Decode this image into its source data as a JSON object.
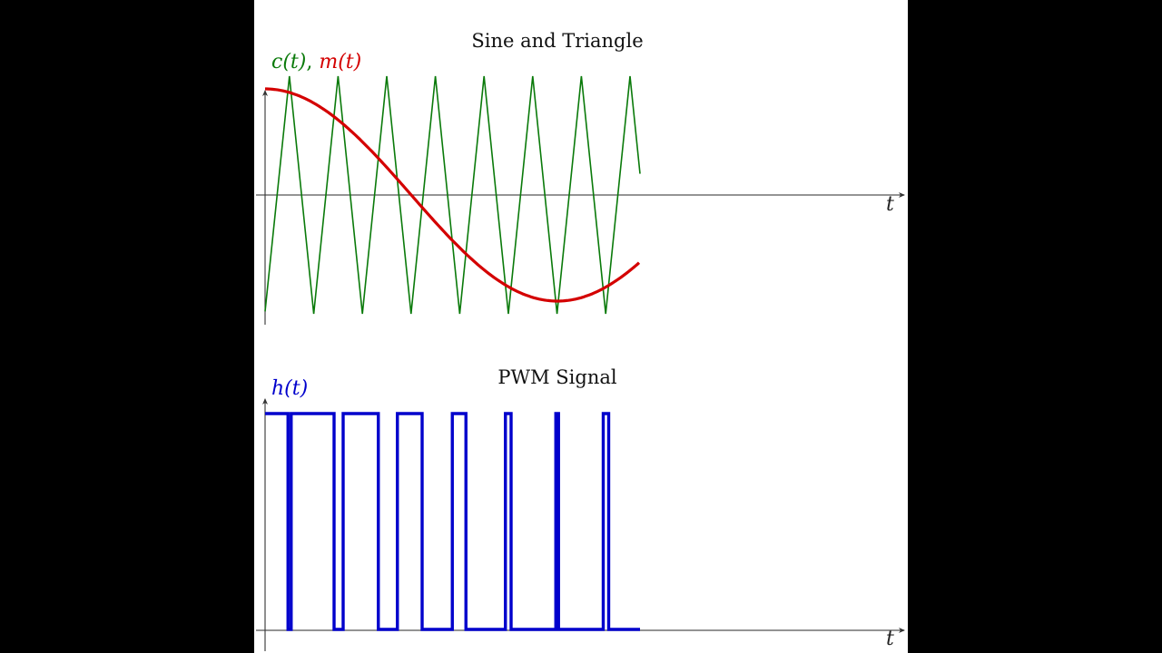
{
  "colors": {
    "background": "#000000",
    "panel": "#ffffff",
    "axis": "#555555",
    "carrier": "#0a7a0a",
    "modulating": "#d40000",
    "pwm": "#0000cc",
    "text": "#111111"
  },
  "chart_data": [
    {
      "type": "line",
      "title": "Sine and Triangle",
      "ylabel_parts": [
        {
          "text": "c(t)",
          "color": "#0a7a0a"
        },
        {
          "text": ", ",
          "color": "#0a7a0a"
        },
        {
          "text": "m(t)",
          "color": "#d40000"
        }
      ],
      "xlabel": "t",
      "grid": false,
      "legend": "none",
      "x_range_normalized": [
        0,
        1
      ],
      "series": [
        {
          "name": "c(t) triangle carrier",
          "color": "#0a7a0a",
          "shape": "triangle",
          "amplitude": 1.0,
          "periods_shown": 7.7,
          "start_phase": "trough",
          "end_value": 0.32
        },
        {
          "name": "m(t) sine modulating",
          "color": "#d40000",
          "shape": "cosine",
          "amplitude": 0.9,
          "start_value": 0.9,
          "min_value": -0.9,
          "min_at_fraction": 0.78,
          "end_value": -0.6
        }
      ],
      "ylim": [
        -1.1,
        1.1
      ]
    },
    {
      "type": "line",
      "title": "PWM Signal",
      "ylabel": "h(t)",
      "xlabel": "t",
      "grid": false,
      "legend": "none",
      "series": [
        {
          "name": "h(t)",
          "color": "#0000cc",
          "shape": "square",
          "levels": [
            0,
            1
          ],
          "description": "h(t)=1 where m(t) > c(t), else 0"
        }
      ],
      "ylim": [
        0,
        1
      ]
    }
  ],
  "layout": {
    "top": {
      "title": "Sine and Triangle",
      "xlabel": "t",
      "ylabel_c": "c(t)",
      "ylabel_sep": ",",
      "ylabel_m": "m(t)"
    },
    "bottom": {
      "title": "PWM Signal",
      "xlabel": "t",
      "ylabel": "h(t)"
    }
  }
}
